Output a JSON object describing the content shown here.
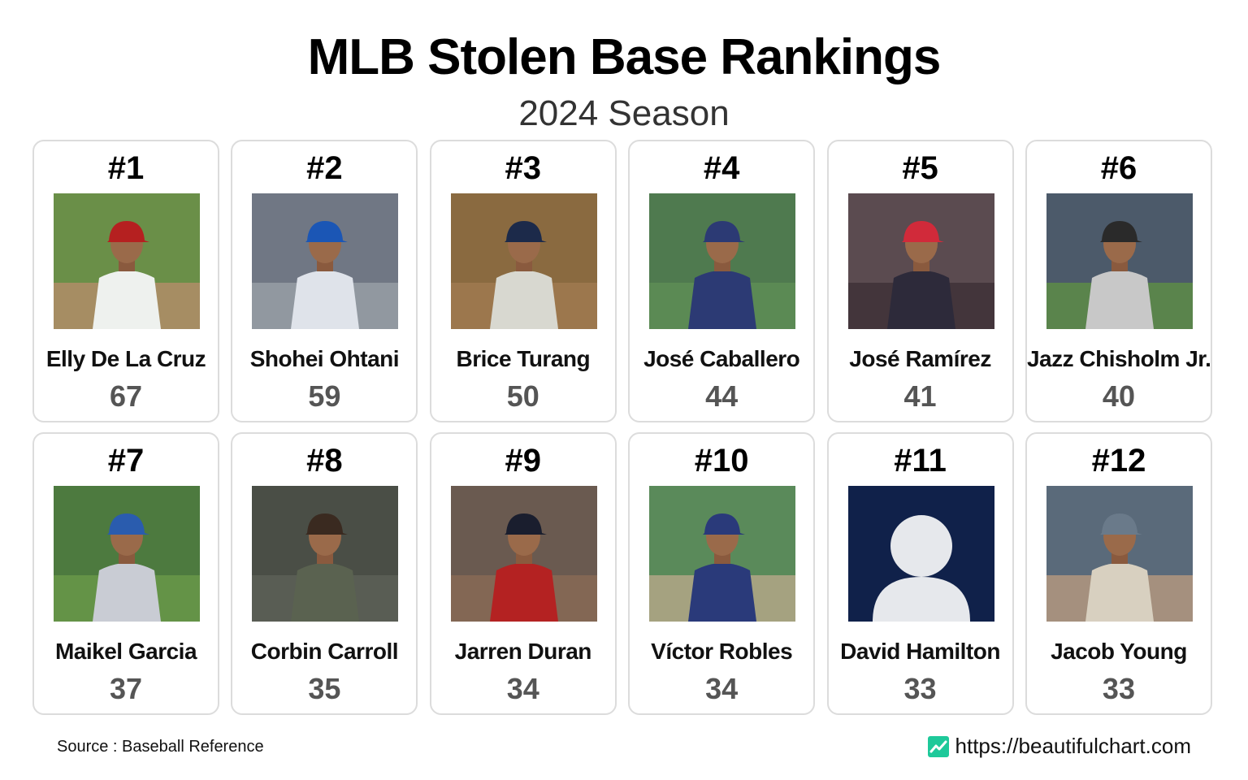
{
  "title": "MLB Stolen Base Rankings",
  "subtitle": "2024 Season",
  "footer": {
    "source": "Source : Baseball Reference",
    "website": "https://beautifulchart.com"
  },
  "colors": {
    "brand_icon": "#1ec99a",
    "card_border": "#dcdcdc",
    "value_text": "#555555",
    "placeholder_bg": "#10214a"
  },
  "chart_data": {
    "type": "table",
    "title": "MLB Stolen Base Rankings",
    "subtitle": "2024 Season",
    "columns": [
      "rank",
      "player",
      "stolen_bases"
    ],
    "rows": [
      {
        "rank": "#1",
        "player": "Elly De La Cruz",
        "value": 67,
        "photo": "player-photo"
      },
      {
        "rank": "#2",
        "player": "Shohei Ohtani",
        "value": 59,
        "photo": "player-photo"
      },
      {
        "rank": "#3",
        "player": "Brice Turang",
        "value": 50,
        "photo": "player-photo"
      },
      {
        "rank": "#4",
        "player": "José Caballero",
        "value": 44,
        "photo": "player-photo"
      },
      {
        "rank": "#5",
        "player": "José Ramírez",
        "value": 41,
        "photo": "player-photo"
      },
      {
        "rank": "#6",
        "player": "Jazz Chisholm Jr.",
        "value": 40,
        "photo": "player-photo"
      },
      {
        "rank": "#7",
        "player": "Maikel Garcia",
        "value": 37,
        "photo": "player-photo"
      },
      {
        "rank": "#8",
        "player": "Corbin Carroll",
        "value": 35,
        "photo": "player-photo"
      },
      {
        "rank": "#9",
        "player": "Jarren Duran",
        "value": 34,
        "photo": "player-photo"
      },
      {
        "rank": "#10",
        "player": "Víctor Robles",
        "value": 34,
        "photo": "player-photo"
      },
      {
        "rank": "#11",
        "player": "David Hamilton",
        "value": 33,
        "photo": "placeholder-avatar"
      },
      {
        "rank": "#12",
        "player": "Jacob Young",
        "value": 33,
        "photo": "player-photo"
      }
    ]
  }
}
